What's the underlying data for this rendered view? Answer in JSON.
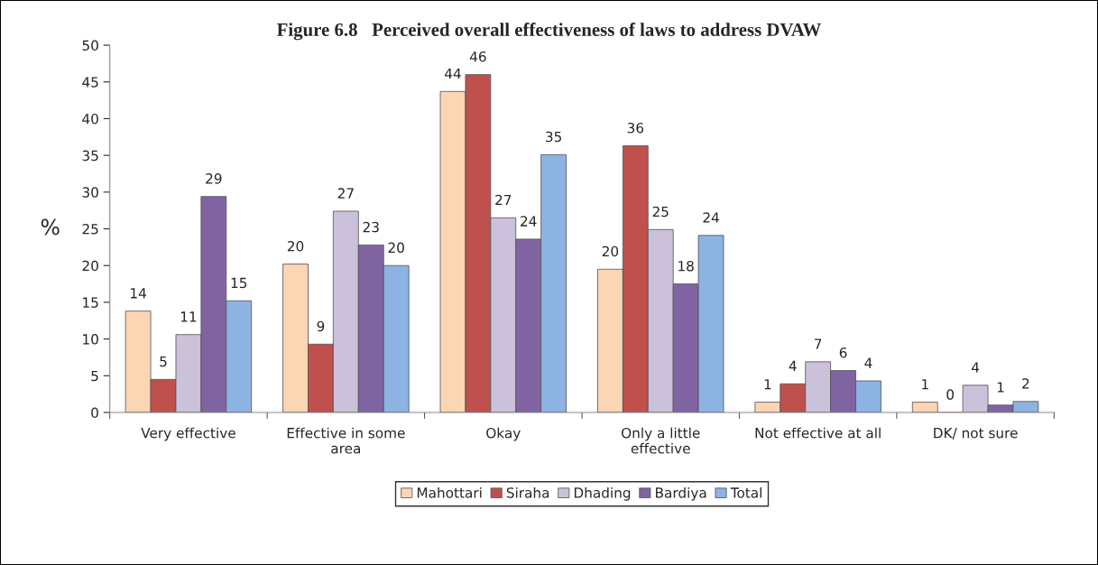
{
  "chart_data": {
    "type": "bar",
    "title": "Figure 6.8   Perceived overall effectiveness of laws to address DVAW",
    "ylabel": "%",
    "categories": [
      "Very effective",
      "Effective in some\narea",
      "Okay",
      "Only a little\neffective",
      "Not effective at all",
      "DK/ not sure"
    ],
    "series": [
      {
        "name": "Mahottari",
        "color": "#fcd5b5",
        "values": [
          13.8,
          20.2,
          43.7,
          19.5,
          1.4,
          1.4
        ],
        "value_labels": [
          "14",
          "20",
          "44",
          "20",
          "1",
          "1"
        ]
      },
      {
        "name": "Siraha",
        "color": "#c0504d",
        "values": [
          4.5,
          9.3,
          46.0,
          36.3,
          3.9,
          0
        ],
        "value_labels": [
          "5",
          "9",
          "46",
          "36",
          "4",
          "0"
        ]
      },
      {
        "name": "Dhading",
        "color": "#ccc1da",
        "values": [
          10.6,
          27.4,
          26.5,
          24.9,
          6.9,
          3.7
        ],
        "value_labels": [
          "11",
          "27",
          "27",
          "25",
          "7",
          "4"
        ]
      },
      {
        "name": "Bardiya",
        "color": "#8064a2",
        "values": [
          29.4,
          22.8,
          23.6,
          17.5,
          5.7,
          1.0
        ],
        "value_labels": [
          "29",
          "23",
          "24",
          "18",
          "6",
          "1"
        ]
      },
      {
        "name": "Total",
        "color": "#8db3e2",
        "values": [
          15.2,
          20.0,
          35.1,
          24.1,
          4.3,
          1.5
        ],
        "value_labels": [
          "15",
          "20",
          "35",
          "24",
          "4",
          "2"
        ]
      }
    ],
    "ylim": [
      0,
      50
    ],
    "yticks": [
      0,
      5,
      10,
      15,
      20,
      25,
      30,
      35,
      40,
      45,
      50
    ],
    "grid": false,
    "legend": "bottom"
  }
}
